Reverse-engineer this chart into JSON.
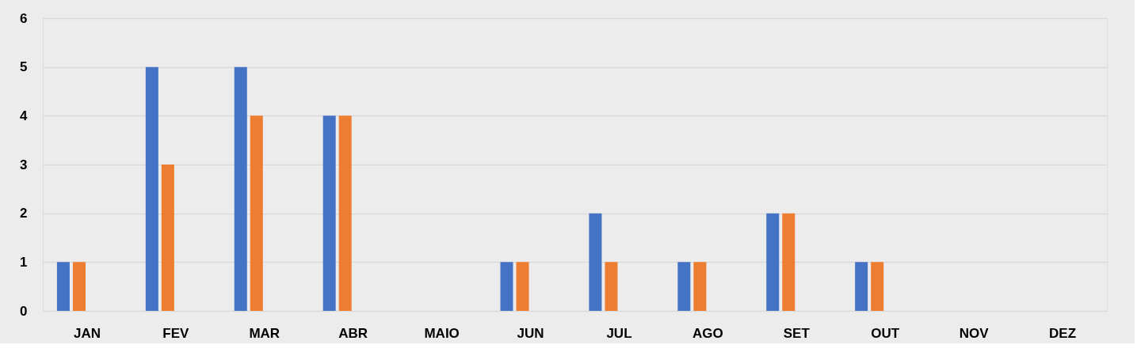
{
  "chart_data": {
    "type": "bar",
    "categories": [
      "JAN",
      "FEV",
      "MAR",
      "ABR",
      "MAIO",
      "JUN",
      "JUL",
      "AGO",
      "SET",
      "OUT",
      "NOV",
      "DEZ"
    ],
    "series": [
      {
        "color": "#4472c4",
        "values": [
          1,
          5,
          5,
          4,
          null,
          1,
          2,
          1,
          2,
          1,
          null,
          null
        ]
      },
      {
        "color": "#ed7d31",
        "values": [
          1,
          3,
          4,
          4,
          null,
          1,
          1,
          1,
          2,
          1,
          null,
          null
        ]
      }
    ],
    "ylim": [
      0,
      6
    ],
    "yticks": [
      0,
      1,
      2,
      3,
      4,
      5,
      6
    ],
    "grid": "y"
  }
}
